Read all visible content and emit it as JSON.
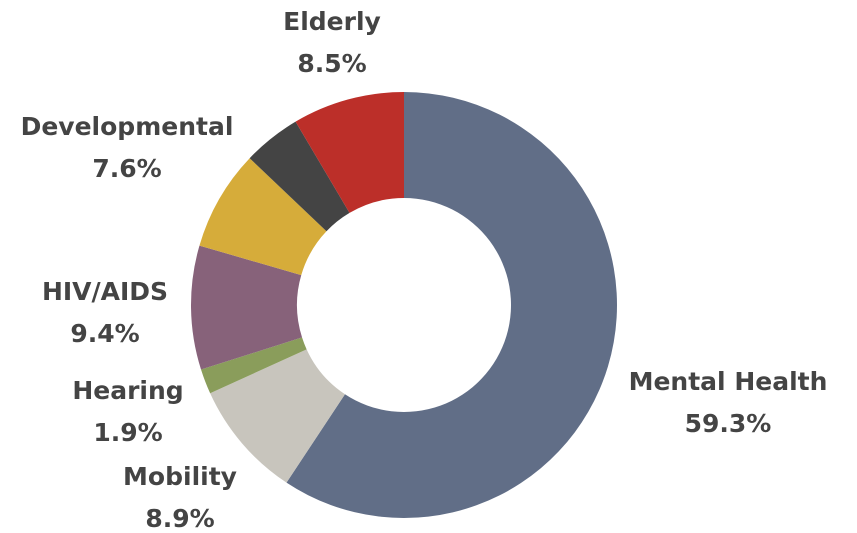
{
  "chart_data": {
    "type": "donut",
    "categories": [
      "Mental Health",
      "Mobility",
      "Hearing",
      "HIV/AIDS",
      "Developmental",
      null,
      "Elderly"
    ],
    "values": [
      59.3,
      8.9,
      1.9,
      9.4,
      7.6,
      4.4,
      8.5
    ],
    "value_labels": [
      "59.3%",
      "8.9%",
      "1.9%",
      "9.4%",
      "7.6%",
      null,
      "8.5%"
    ],
    "colors": [
      "#616e87",
      "#c8c5bd",
      "#8a9d5b",
      "#87627a",
      "#d6ac3a",
      "#444444",
      "#bc2f29"
    ]
  }
}
